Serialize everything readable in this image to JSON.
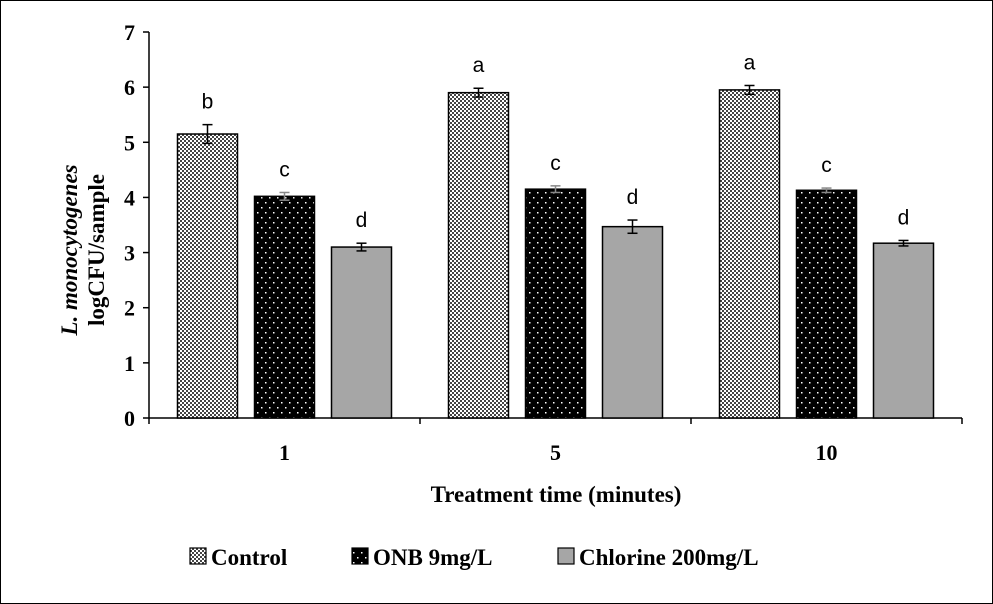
{
  "chart_data": {
    "type": "bar",
    "title": "",
    "xlabel": "Treatment time (minutes)",
    "ylabel_italic": "L. monocytogenes",
    "ylabel": "logCFU/sample",
    "categories": [
      "1",
      "5",
      "10"
    ],
    "ylim": [
      0,
      7
    ],
    "yticks": [
      "0",
      "1",
      "2",
      "3",
      "4",
      "5",
      "6",
      "7"
    ],
    "grid": false,
    "legend_position": "bottom",
    "series": [
      {
        "name": "Control",
        "pattern": "checker",
        "color": "#ffffff",
        "values": [
          5.15,
          5.9,
          5.95
        ],
        "errors": [
          0.17,
          0.08,
          0.08
        ],
        "letters": [
          "b",
          "a",
          "a"
        ]
      },
      {
        "name": "ONB 9mg/L",
        "pattern": "dots-on-black",
        "color": "#000000",
        "values": [
          4.02,
          4.15,
          4.13
        ],
        "errors": [
          0.07,
          0.06,
          0.04
        ],
        "letters": [
          "c",
          "c",
          "c"
        ]
      },
      {
        "name": "Chlorine 200mg/L",
        "pattern": "solid",
        "color": "#a6a6a6",
        "values": [
          3.1,
          3.47,
          3.17
        ],
        "errors": [
          0.07,
          0.12,
          0.05
        ],
        "letters": [
          "d",
          "d",
          "d"
        ]
      }
    ]
  }
}
